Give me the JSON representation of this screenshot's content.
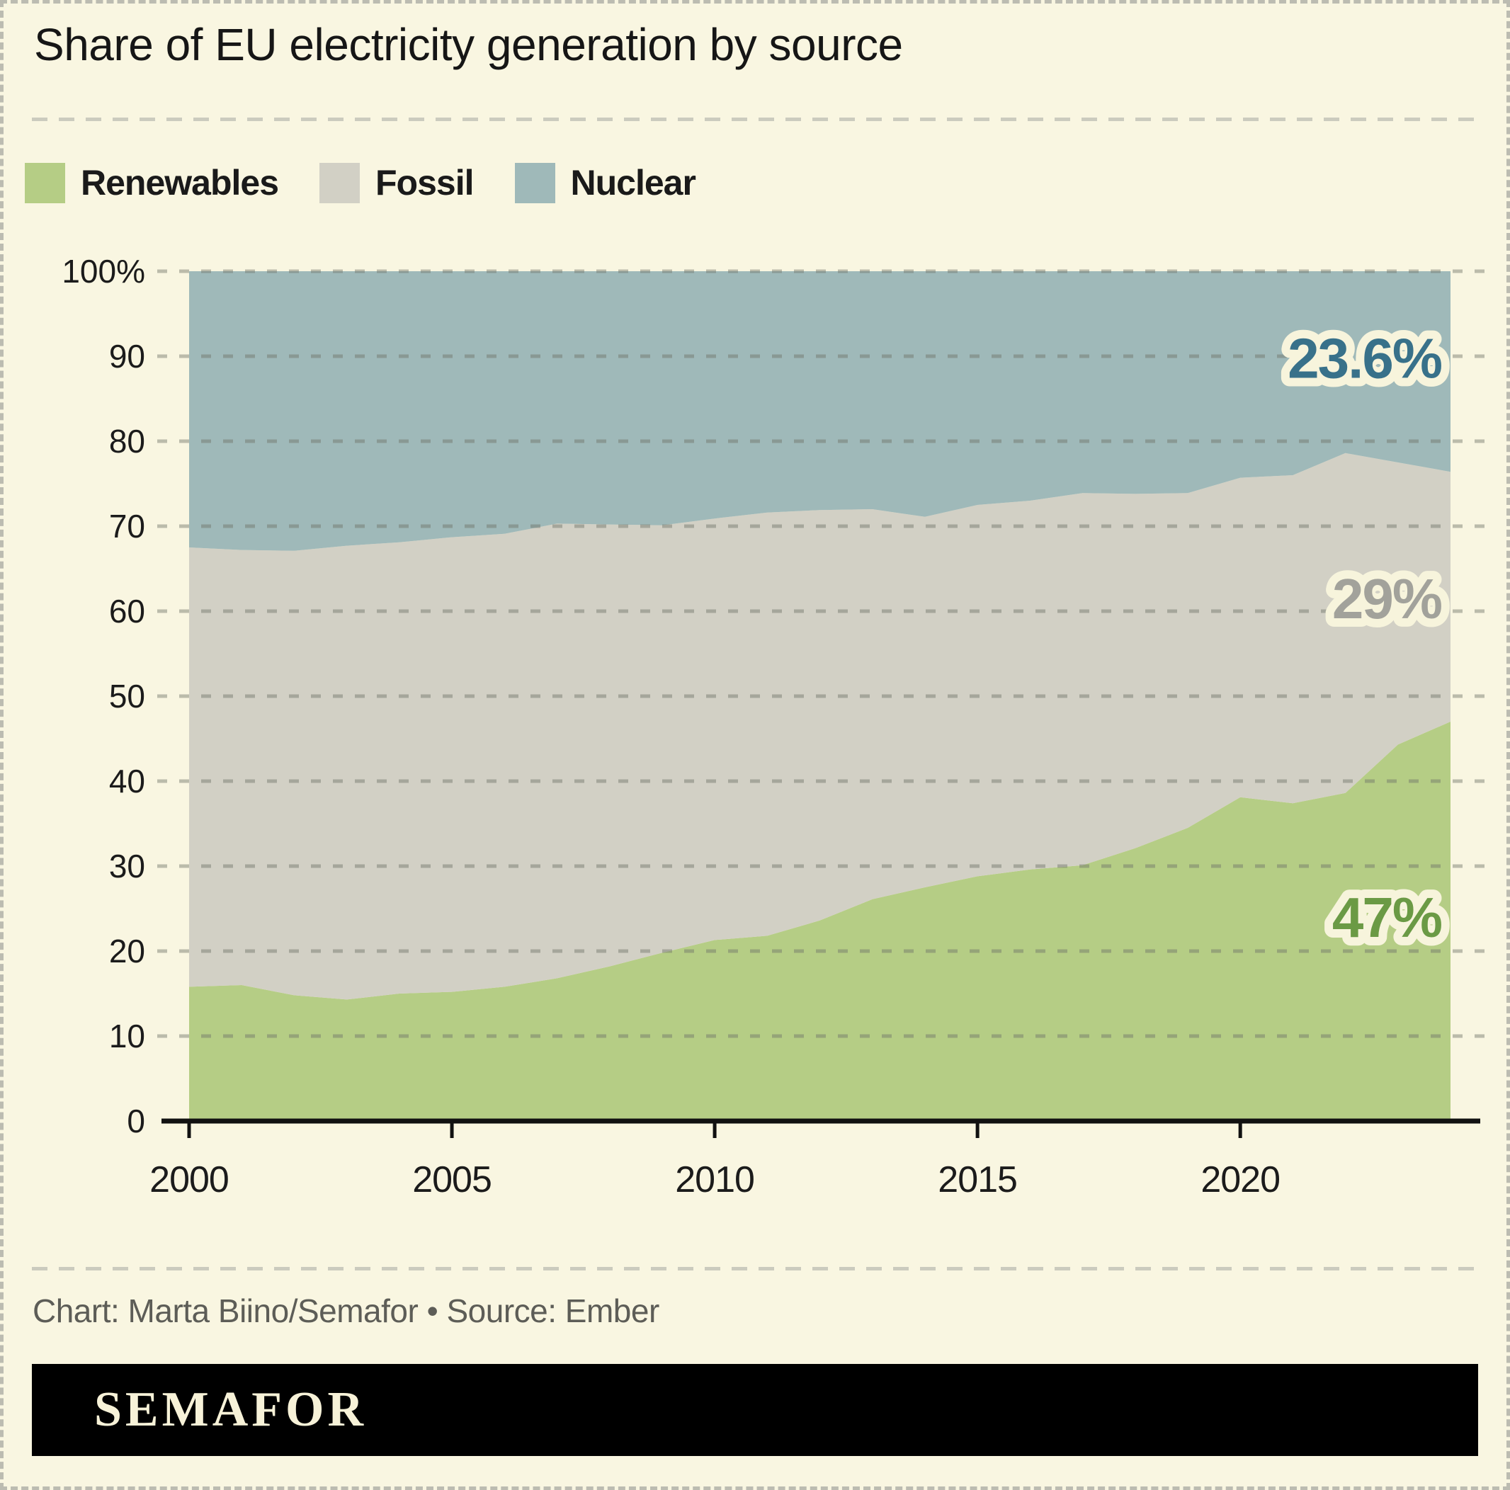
{
  "title": "Share of EU electricity generation by source",
  "legend": [
    {
      "label": "Renewables",
      "color": "#b5cd85"
    },
    {
      "label": "Fossil",
      "color": "#d2d0c5"
    },
    {
      "label": "Nuclear",
      "color": "#9fb9b9"
    }
  ],
  "credits": "Chart: Marta Biino/Semafor • Source: Ember",
  "logo": "SEMAFOR",
  "colors": {
    "background": "#f9f6e1",
    "renewables": "#b5cd85",
    "fossil": "#d2d0c5",
    "nuclear": "#9fb9b9",
    "axis": "#111111",
    "gridline": "#6f7468",
    "tick_text": "#1b1b1b",
    "halo": "#f7f4dc"
  },
  "chart_data": {
    "type": "area",
    "stacked": true,
    "title": "Share of EU electricity generation by source",
    "xlabel": "",
    "ylabel": "",
    "ylim": [
      0,
      100
    ],
    "grid": true,
    "legend_position": "top-left",
    "x": [
      2000,
      2001,
      2002,
      2003,
      2004,
      2005,
      2006,
      2007,
      2008,
      2009,
      2010,
      2011,
      2012,
      2013,
      2014,
      2015,
      2016,
      2017,
      2018,
      2019,
      2020,
      2021,
      2022,
      2023,
      2024
    ],
    "x_ticks": [
      2000,
      2005,
      2010,
      2015,
      2020
    ],
    "y_ticks": [
      {
        "value": 100,
        "label": "100%"
      },
      {
        "value": 90,
        "label": "90"
      },
      {
        "value": 80,
        "label": "80"
      },
      {
        "value": 70,
        "label": "70"
      },
      {
        "value": 60,
        "label": "60"
      },
      {
        "value": 50,
        "label": "50"
      },
      {
        "value": 40,
        "label": "40"
      },
      {
        "value": 30,
        "label": "30"
      },
      {
        "value": 20,
        "label": "20"
      },
      {
        "value": 10,
        "label": "10"
      },
      {
        "value": 0,
        "label": "0"
      }
    ],
    "series": [
      {
        "name": "Renewables",
        "color": "#b5cd85",
        "values": [
          15.8,
          16.0,
          14.8,
          14.3,
          15.0,
          15.2,
          15.8,
          16.8,
          18.2,
          19.8,
          21.3,
          21.8,
          23.6,
          26.1,
          27.5,
          28.8,
          29.6,
          30.1,
          32.1,
          34.5,
          38.1,
          37.4,
          38.6,
          44.3,
          47.0
        ]
      },
      {
        "name": "Fossil",
        "color": "#d2d0c5",
        "values": [
          51.7,
          51.2,
          52.3,
          53.4,
          53.1,
          53.5,
          53.3,
          53.5,
          52.0,
          50.3,
          49.6,
          49.8,
          48.3,
          45.9,
          43.6,
          43.7,
          43.4,
          43.8,
          41.7,
          39.4,
          37.6,
          38.6,
          40.0,
          33.2,
          29.4
        ]
      },
      {
        "name": "Nuclear",
        "color": "#9fb9b9",
        "values": [
          32.5,
          32.8,
          32.9,
          32.3,
          31.9,
          31.3,
          30.9,
          29.7,
          29.8,
          29.9,
          29.1,
          28.4,
          28.1,
          28.0,
          28.9,
          27.5,
          27.0,
          26.1,
          26.2,
          26.1,
          24.3,
          24.0,
          21.4,
          22.5,
          23.6
        ]
      }
    ],
    "annotations": [
      {
        "series": "Nuclear",
        "text": "23.6%",
        "color": "#38718a",
        "y_value": 89.8
      },
      {
        "series": "Fossil",
        "text": "29%",
        "color": "#a2a29b",
        "y_value": 61.5
      },
      {
        "series": "Renewables",
        "text": "47%",
        "color": "#6b9a45",
        "y_value": 24.0
      }
    ]
  }
}
